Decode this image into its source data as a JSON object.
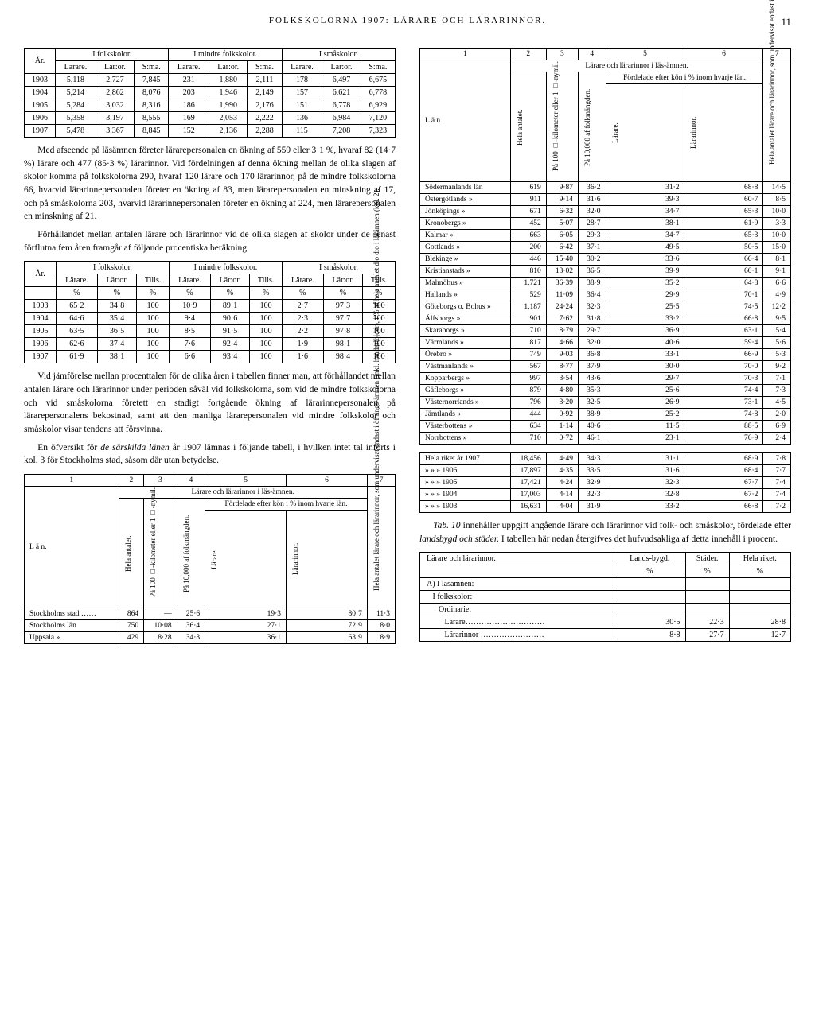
{
  "header": {
    "title": "FOLKSKOLORNA 1907: LÄRARE OCH LÄRARINNOR.",
    "page_number": "11"
  },
  "table1": {
    "col_year": "År.",
    "group1": "I folkskolor.",
    "group2": "I mindre folkskolor.",
    "group3": "I småskolor.",
    "sub_larare": "Lärare.",
    "sub_laror": "Lär:or.",
    "sub_sma": "S:ma.",
    "rows": [
      {
        "y": "1903",
        "a": "5,118",
        "b": "2,727",
        "c": "7,845",
        "d": "231",
        "e": "1,880",
        "f": "2,111",
        "g": "178",
        "h": "6,497",
        "i": "6,675"
      },
      {
        "y": "1904",
        "a": "5,214",
        "b": "2,862",
        "c": "8,076",
        "d": "203",
        "e": "1,946",
        "f": "2,149",
        "g": "157",
        "h": "6,621",
        "i": "6,778"
      },
      {
        "y": "1905",
        "a": "5,284",
        "b": "3,032",
        "c": "8,316",
        "d": "186",
        "e": "1,990",
        "f": "2,176",
        "g": "151",
        "h": "6,778",
        "i": "6,929"
      },
      {
        "y": "1906",
        "a": "5,358",
        "b": "3,197",
        "c": "8,555",
        "d": "169",
        "e": "2,053",
        "f": "2,222",
        "g": "136",
        "h": "6,984",
        "i": "7,120"
      },
      {
        "y": "1907",
        "a": "5,478",
        "b": "3,367",
        "c": "8,845",
        "d": "152",
        "e": "2,136",
        "f": "2,288",
        "g": "115",
        "h": "7,208",
        "i": "7,323"
      }
    ]
  },
  "para1": "Med afseende på läsämnen företer lärarepersonalen en ökning af 559 eller 3·1 %, hvaraf 82 (14·7 %) lärare och 477 (85·3 %) lärarinnor. Vid fördelningen af denna ökning mellan de olika slagen af skolor komma på folkskolorna 290, hvaraf 120 lärare och 170 lärarinnor, på de mindre folkskolorna 66, hvarvid lärarinnepersonalen företer en ökning af 83, men lärarepersonalen en minskning af 17, och på småskolorna 203, hvarvid lärarinnepersonalen företer en ökning af 224, men lärarepersonalen en minskning af 21.",
  "para2": "Förhållandet mellan antalen lärare och lärarinnor vid de olika slagen af skolor under de senast förflutna fem åren framgår af följande procentiska beräkning.",
  "table2": {
    "col_year": "År.",
    "group1": "I folkskolor.",
    "group2": "I mindre folkskolor.",
    "group3": "I småskolor.",
    "sub_larare": "Lärare.",
    "sub_laror": "Lär:or.",
    "sub_tills": "Tills.",
    "unit": "%",
    "rows": [
      {
        "y": "1903",
        "a": "65·2",
        "b": "34·8",
        "c": "100",
        "d": "10·9",
        "e": "89·1",
        "f": "100",
        "g": "2·7",
        "h": "97·3",
        "i": "100"
      },
      {
        "y": "1904",
        "a": "64·6",
        "b": "35·4",
        "c": "100",
        "d": "9·4",
        "e": "90·6",
        "f": "100",
        "g": "2·3",
        "h": "97·7",
        "i": "100"
      },
      {
        "y": "1905",
        "a": "63·5",
        "b": "36·5",
        "c": "100",
        "d": "8·5",
        "e": "91·5",
        "f": "100",
        "g": "2·2",
        "h": "97·8",
        "i": "100"
      },
      {
        "y": "1906",
        "a": "62·6",
        "b": "37·4",
        "c": "100",
        "d": "7·6",
        "e": "92·4",
        "f": "100",
        "g": "1·9",
        "h": "98·1",
        "i": "100"
      },
      {
        "y": "1907",
        "a": "61·9",
        "b": "38·1",
        "c": "100",
        "d": "6·6",
        "e": "93·4",
        "f": "100",
        "g": "1·6",
        "h": "98·4",
        "i": "100"
      }
    ]
  },
  "para3": "Vid jämförelse mellan procenttalen för de olika åren i tabellen finner man, att förhållandet mellan antalen lärare och lärarinnor under perioden såväl vid folkskolorna, som vid de mindre folkskolorna och vid småskolorna företett en stadigt fortgående ökning af lärarinnepersonalen på lärarepersonalens bekostnad, samt att den manliga lärarepersonalen vid mindre folkskolor och småskolor visar tendens att försvinna.",
  "para4": "En öfversikt för de särskilda länen år 1907 lämnas i följande tabell, i hvilken intet tal införts i kol. 3 för Stockholms stad, såsom där utan betydelse.",
  "table3": {
    "head_num": [
      "1",
      "2",
      "3",
      "4",
      "5",
      "6",
      "7"
    ],
    "head_span": "Lärare och lärarinnor i läs-ämnen.",
    "head_lan": "L ä n.",
    "v_hela": "Hela antalet.",
    "v_pa100": "På 100 □-kilometer eller 1 □-nymil.",
    "v_pa10000": "På 10,000 af folkmängden.",
    "v_ford": "Fördelade efter kön i % inom hvarje län.",
    "v_larare": "Lärare.",
    "v_lararinnor": "Lärarinnor.",
    "v_col7": "Hela antalet lärare och lärarinnor, som undervisat endast i öfnings-ämnen (inkl. handaslöjder), i % af hela antalet d:o d:o i läsämnen (kol. 2).",
    "rows_left": [
      {
        "n": "Stockholms stad ……",
        "a": "864",
        "b": "—",
        "c": "25·6",
        "d": "19·3",
        "e": "80·7",
        "f": "11·3"
      },
      {
        "n": "Stockholms        län",
        "a": "750",
        "b": "10·08",
        "c": "36·4",
        "d": "27·1",
        "e": "72·9",
        "f": "8·0"
      },
      {
        "n": "Uppsala              »",
        "a": "429",
        "b": "8·28",
        "c": "34·3",
        "d": "36·1",
        "e": "63·9",
        "f": "8·9"
      }
    ],
    "rows_right": [
      {
        "n": "Södermanlands     län",
        "a": "619",
        "b": "9·87",
        "c": "36·2",
        "d": "31·2",
        "e": "68·8",
        "f": "14·5"
      },
      {
        "n": "Östergötlands        »",
        "a": "911",
        "b": "9·14",
        "c": "31·6",
        "d": "39·3",
        "e": "60·7",
        "f": "8·5"
      },
      {
        "n": "Jönköpings           »",
        "a": "671",
        "b": "6·32",
        "c": "32·0",
        "d": "34·7",
        "e": "65·3",
        "f": "10·0"
      },
      {
        "n": "Kronobergs           »",
        "a": "452",
        "b": "5·07",
        "c": "28·7",
        "d": "38·1",
        "e": "61·9",
        "f": "3·3"
      },
      {
        "n": "Kalmar                »",
        "a": "663",
        "b": "6·05",
        "c": "29·3",
        "d": "34·7",
        "e": "65·3",
        "f": "10·0"
      },
      {
        "n": "Gottlands             »",
        "a": "200",
        "b": "6·42",
        "c": "37·1",
        "d": "49·5",
        "e": "50·5",
        "f": "15·0"
      },
      {
        "n": "Blekinge              »",
        "a": "446",
        "b": "15·40",
        "c": "30·2",
        "d": "33·6",
        "e": "66·4",
        "f": "8·1"
      },
      {
        "n": "Kristianstads        »",
        "a": "810",
        "b": "13·02",
        "c": "36·5",
        "d": "39·9",
        "e": "60·1",
        "f": "9·1"
      },
      {
        "n": "Malmöhus            »",
        "a": "1,721",
        "b": "36·39",
        "c": "38·9",
        "d": "35·2",
        "e": "64·8",
        "f": "6·6"
      },
      {
        "n": "Hallands             »",
        "a": "529",
        "b": "11·09",
        "c": "36·4",
        "d": "29·9",
        "e": "70·1",
        "f": "4·9"
      },
      {
        "n": "Göteborgs o. Bohus »",
        "a": "1,187",
        "b": "24·24",
        "c": "32·3",
        "d": "25·5",
        "e": "74·5",
        "f": "12·2"
      },
      {
        "n": "Älfsborgs            »",
        "a": "901",
        "b": "7·62",
        "c": "31·8",
        "d": "33·2",
        "e": "66·8",
        "f": "9·5"
      },
      {
        "n": "Skaraborgs          »",
        "a": "710",
        "b": "8·79",
        "c": "29·7",
        "d": "36·9",
        "e": "63·1",
        "f": "5·4"
      },
      {
        "n": "Värmlands           »",
        "a": "817",
        "b": "4·66",
        "c": "32·0",
        "d": "40·6",
        "e": "59·4",
        "f": "5·6"
      },
      {
        "n": "Örebro               »",
        "a": "749",
        "b": "9·03",
        "c": "36·8",
        "d": "33·1",
        "e": "66·9",
        "f": "5·3"
      },
      {
        "n": "Västmanlands       »",
        "a": "567",
        "b": "8·77",
        "c": "37·9",
        "d": "30·0",
        "e": "70·0",
        "f": "9·2"
      },
      {
        "n": "Kopparbergs        »",
        "a": "997",
        "b": "3·54",
        "c": "43·6",
        "d": "29·7",
        "e": "70·3",
        "f": "7·1"
      },
      {
        "n": "Gäfleborgs          »",
        "a": "879",
        "b": "4·80",
        "c": "35·3",
        "d": "25·6",
        "e": "74·4",
        "f": "7·3"
      },
      {
        "n": "Västernorrlands    »",
        "a": "796",
        "b": "3·20",
        "c": "32·5",
        "d": "26·9",
        "e": "73·1",
        "f": "4·5"
      },
      {
        "n": "Jämtlands           »",
        "a": "444",
        "b": "0·92",
        "c": "38·9",
        "d": "25·2",
        "e": "74·8",
        "f": "2·0"
      },
      {
        "n": "Västerbottens       »",
        "a": "634",
        "b": "1·14",
        "c": "40·6",
        "d": "11·5",
        "e": "88·5",
        "f": "6·9"
      },
      {
        "n": "Norrbottens         »",
        "a": "710",
        "b": "0·72",
        "c": "46·1",
        "d": "23·1",
        "e": "76·9",
        "f": "2·4"
      }
    ],
    "totals": [
      {
        "n": "Hela riket år 1907",
        "a": "18,456",
        "b": "4·49",
        "c": "34·3",
        "d": "31·1",
        "e": "68·9",
        "f": "7·8"
      },
      {
        "n": "»      »     »  1906",
        "a": "17,897",
        "b": "4·35",
        "c": "33·5",
        "d": "31·6",
        "e": "68·4",
        "f": "7·7"
      },
      {
        "n": "»      »     »  1905",
        "a": "17,421",
        "b": "4·24",
        "c": "32·9",
        "d": "32·3",
        "e": "67·7",
        "f": "7·4"
      },
      {
        "n": "»      »     »  1904",
        "a": "17,003",
        "b": "4·14",
        "c": "32·3",
        "d": "32·8",
        "e": "67·2",
        "f": "7·4"
      },
      {
        "n": "»      »     »  1903",
        "a": "16,631",
        "b": "4·04",
        "c": "31·9",
        "d": "33·2",
        "e": "66·8",
        "f": "7·2"
      }
    ]
  },
  "para5_a": "Tab. 10",
  "para5_b": " innehåller uppgift angående lärare och lärarinnor vid folk- och småskolor, fördelade efter ",
  "para5_c": "landsbygd och städer.",
  "para5_d": " I tabellen här nedan återgifves det hufvudsakliga af detta innehåll i procent.",
  "table4": {
    "h1": "Lärare och lärarinnor.",
    "h2": "Lands-bygd.",
    "h3": "Städer.",
    "h4": "Hela riket.",
    "unit": "%",
    "rows": [
      {
        "n": "A) I läsämnen:",
        "a": "",
        "b": "",
        "c": ""
      },
      {
        "n": "   I folkskolor:",
        "a": "",
        "b": "",
        "c": ""
      },
      {
        "n": "      Ordinarie:",
        "a": "",
        "b": "",
        "c": ""
      },
      {
        "n": "         Lärare…………………………",
        "a": "30·5",
        "b": "22·3",
        "c": "28·8"
      },
      {
        "n": "         Lärarinnor ……………………",
        "a": "8·8",
        "b": "27·7",
        "c": "12·7"
      }
    ]
  }
}
